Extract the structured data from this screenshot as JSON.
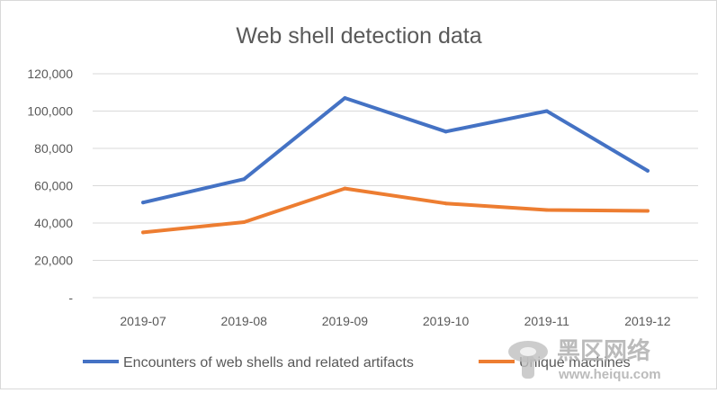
{
  "chart_data": {
    "type": "line",
    "title": "Web shell detection data",
    "categories": [
      "2019-07",
      "2019-08",
      "2019-09",
      "2019-10",
      "2019-11",
      "2019-12"
    ],
    "ylim": [
      0,
      120000
    ],
    "yticks": [
      0,
      20000,
      40000,
      60000,
      80000,
      100000,
      120000
    ],
    "ytick_labels": [
      "-",
      "20,000",
      "40,000",
      "60,000",
      "80,000",
      "100,000",
      "120,000"
    ],
    "grid": "horizontal",
    "legend_position": "bottom",
    "series": [
      {
        "name": "Encounters of web shells and related artifacts",
        "values": [
          51000,
          63500,
          107000,
          89000,
          100000,
          68000
        ],
        "color": "#4472C4"
      },
      {
        "name": "Unique machines",
        "values": [
          35000,
          40500,
          58500,
          50500,
          47000,
          46500
        ],
        "color": "#ED7D31"
      }
    ]
  },
  "watermark": {
    "text": "黑区网络",
    "url": "www.heiqu.com"
  }
}
